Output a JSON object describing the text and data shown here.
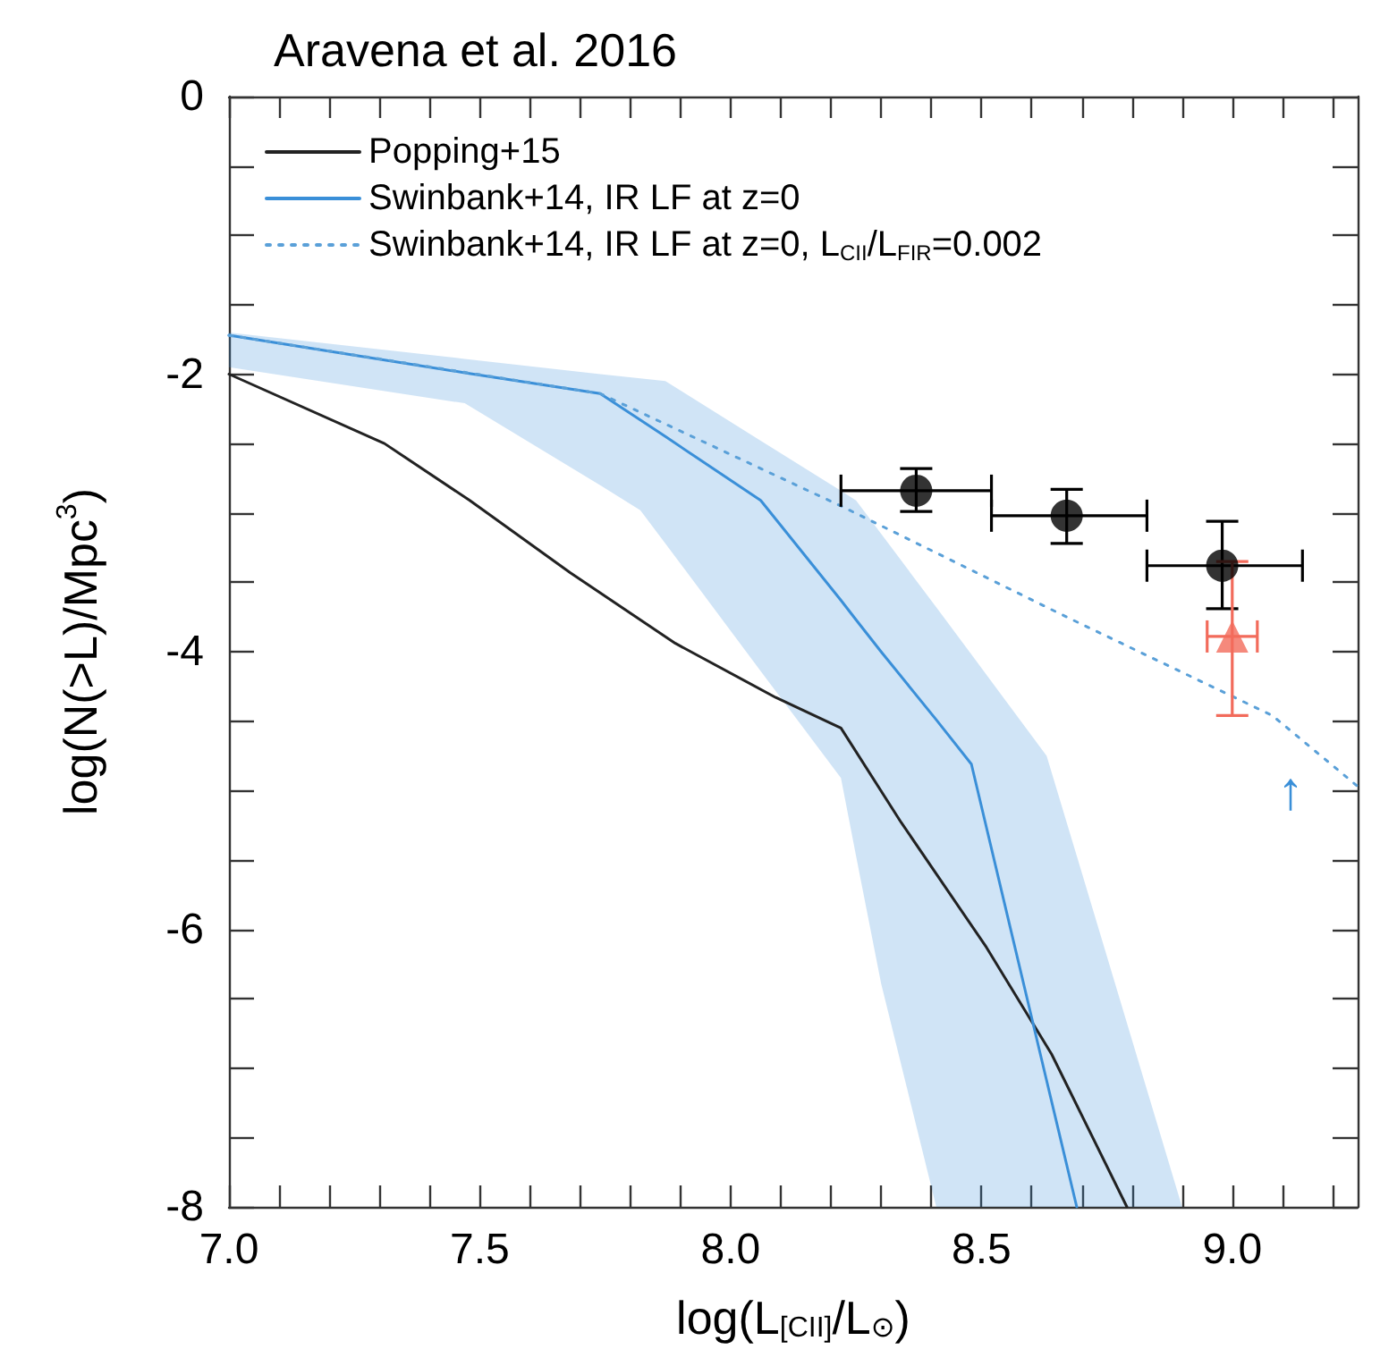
{
  "chart_data": {
    "type": "line",
    "title": "Aravena et al. 2016",
    "xlabel": "log(L$_{[CII]}$/L$_{⊙}$)",
    "ylabel": "log(N(>L)/Mpc$^{3}$)",
    "xlim": [
      7.0,
      9.25
    ],
    "ylim": [
      -8,
      0
    ],
    "xticks": [
      {
        "value": 7.0,
        "label": "7.0"
      },
      {
        "value": 7.1,
        "label": null
      },
      {
        "value": 7.2,
        "label": null
      },
      {
        "value": 7.3,
        "label": null
      },
      {
        "value": 7.4,
        "label": null
      },
      {
        "value": 7.5,
        "label": "7.5"
      },
      {
        "value": 7.6,
        "label": null
      },
      {
        "value": 7.7,
        "label": null
      },
      {
        "value": 7.8,
        "label": null
      },
      {
        "value": 7.9,
        "label": null
      },
      {
        "value": 8.0,
        "label": "8.0"
      },
      {
        "value": 8.1,
        "label": null
      },
      {
        "value": 8.2,
        "label": null
      },
      {
        "value": 8.3,
        "label": null
      },
      {
        "value": 8.4,
        "label": null
      },
      {
        "value": 8.5,
        "label": "8.5"
      },
      {
        "value": 8.6,
        "label": null
      },
      {
        "value": 8.7,
        "label": null
      },
      {
        "value": 8.8,
        "label": null
      },
      {
        "value": 8.9,
        "label": null
      },
      {
        "value": 9.0,
        "label": "9.0"
      },
      {
        "value": 9.1,
        "label": null
      },
      {
        "value": 9.2,
        "label": null
      }
    ],
    "yticks": [
      -8,
      {
        "value": -7.5,
        "label": null
      },
      {
        "value": -7,
        "label": null
      },
      {
        "value": -6.5,
        "label": null
      },
      -6,
      {
        "value": -5.5,
        "label": null
      },
      {
        "value": -5,
        "label": null
      },
      {
        "value": -4.5,
        "label": null
      },
      -4,
      {
        "value": -3.5,
        "label": null
      },
      {
        "value": -3,
        "label": null
      },
      {
        "value": -2.5,
        "label": null
      },
      -2,
      {
        "value": -1.5,
        "label": null
      },
      {
        "value": -1,
        "label": null
      },
      {
        "value": -0.5,
        "label": null
      },
      0
    ],
    "grid": false,
    "legend": "top left",
    "annotations": [
      "↑"
    ],
    "series": [
      {
        "name": "Popping+15",
        "color": "#222222",
        "line_style": "solid",
        "x": [
          7.0,
          7.31,
          7.48,
          7.68,
          7.89,
          8.09,
          8.22,
          8.34,
          8.51,
          8.64,
          8.79
        ],
        "values": [
          -2.0,
          -2.5,
          -2.91,
          -3.43,
          -3.94,
          -4.33,
          -4.55,
          -5.23,
          -6.13,
          -6.9,
          -8.0
        ]
      },
      {
        "name": "Swinbank+14, IR LF at z=0",
        "color": "#3a8fd8",
        "line_style": "solid",
        "x": [
          7.0,
          7.47,
          7.74,
          7.82,
          7.87,
          8.06,
          8.22,
          8.25,
          8.3,
          8.41,
          8.48,
          8.63,
          8.69,
          8.9
        ],
        "values": [
          -1.72,
          -1.99,
          -2.14,
          -2.33,
          -2.45,
          -2.91,
          -3.63,
          -3.77,
          -4.0,
          -4.49,
          -4.81,
          -7.09,
          -8.0,
          null
        ],
        "upper": [
          -1.7,
          -1.89,
          -2.0,
          -2.03,
          -2.05,
          -2.48,
          -2.84,
          -2.91,
          -3.15,
          -3.68,
          -4.02,
          -4.75,
          -5.47,
          -8.0
        ],
        "lower": [
          -1.95,
          -2.21,
          -2.8,
          -2.98,
          -3.22,
          -4.14,
          -4.91,
          -5.47,
          -6.39,
          -8.0,
          -8.0,
          -8.0,
          -8.0,
          -8.0
        ]
      },
      {
        "name": "Swinbank+14, IR LF at z=0, L$_{CII}$/L$_{FIR}$=0.002",
        "color": "#5aa0d8",
        "line_style": "dotted",
        "x": [
          7.0,
          7.74,
          8.22,
          8.67,
          9.08,
          9.25
        ],
        "values": [
          -1.72,
          -2.14,
          -2.95,
          -3.75,
          -4.46,
          -4.97
        ]
      },
      {
        "type": "scatter",
        "color": "#000000",
        "marker": "circle",
        "x": [
          8.37,
          8.67,
          8.98
        ],
        "values": [
          -2.84,
          -3.02,
          -3.38
        ],
        "errors": [
          [
            -2.99,
            -2.68
          ],
          [
            -3.22,
            -2.83
          ],
          [
            -3.69,
            -3.06
          ]
        ],
        "xerrors": [
          [
            8.22,
            8.52
          ],
          [
            8.52,
            8.83
          ],
          [
            8.83,
            9.14
          ]
        ]
      },
      {
        "type": "scatter",
        "color": "#f26b5b",
        "marker": "triangle",
        "x": [
          9.0
        ],
        "values": [
          -3.89
        ],
        "errors": [
          [
            -4.46,
            -3.35
          ]
        ],
        "xerrors": [
          [
            8.95,
            9.05
          ]
        ]
      }
    ]
  }
}
